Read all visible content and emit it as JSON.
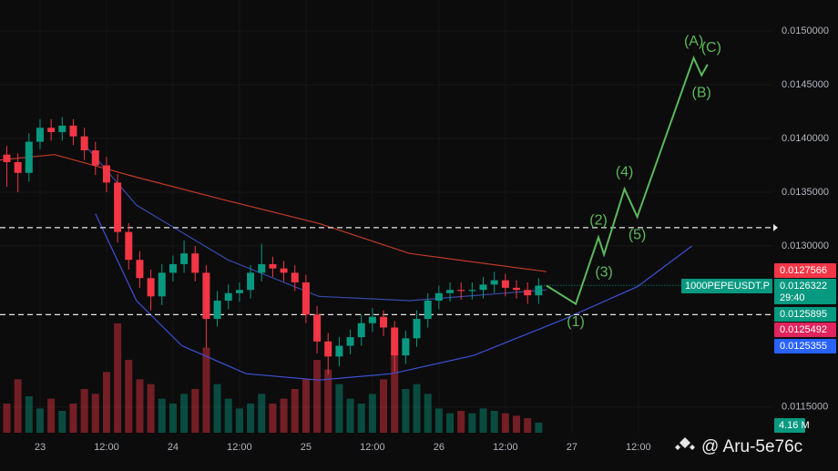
{
  "chart_data": {
    "type": "candlestick",
    "symbol": "1000PEPEUSDT.P",
    "countdown": "29:40",
    "watermark": "@ Aru-5e76c",
    "xlim": [
      -7.23,
      132.2
    ],
    "ylim": [
      0.01126,
      0.01529
    ],
    "y2lim": [
      0,
      60
    ],
    "xticks": [
      {
        "value": 0,
        "label": "23"
      },
      {
        "value": 12,
        "label": "12:00"
      },
      {
        "value": 24,
        "label": "24"
      },
      {
        "value": 36,
        "label": "12:00"
      },
      {
        "value": 48,
        "label": "25"
      },
      {
        "value": 60,
        "label": "12:00"
      },
      {
        "value": 72,
        "label": "26"
      },
      {
        "value": 84,
        "label": "12:00"
      },
      {
        "value": 96,
        "label": "27"
      },
      {
        "value": 108,
        "label": "12:00"
      }
    ],
    "yticks": [
      {
        "value": 0.015,
        "label": "0.0150000"
      },
      {
        "value": 0.0145,
        "label": "0.0145000"
      },
      {
        "value": 0.014,
        "label": "0.0140000"
      },
      {
        "value": 0.0135,
        "label": "0.0135000"
      },
      {
        "value": 0.013,
        "label": "0.0130000"
      },
      {
        "value": 0.0115,
        "label": "0.0115000"
      }
    ],
    "grid": true,
    "up_color": "#089981",
    "down_color": "#f23645",
    "x": [
      -6,
      -4,
      -2,
      0,
      2,
      4,
      6,
      8,
      10,
      12,
      14,
      16,
      18,
      20,
      22,
      24,
      26,
      28,
      30,
      32,
      34,
      36,
      38,
      40,
      42,
      44,
      46,
      48,
      50,
      52,
      54,
      56,
      58,
      60,
      62,
      64,
      66,
      68,
      70,
      72,
      74,
      76,
      78,
      80,
      82,
      84,
      86,
      88,
      90
    ],
    "open": [
      0.01385,
      0.01378,
      0.01368,
      0.01397,
      0.0141,
      0.01406,
      0.01412,
      0.01402,
      0.01389,
      0.01375,
      0.01359,
      0.01313,
      0.01287,
      0.0127,
      0.01253,
      0.01275,
      0.01283,
      0.01293,
      0.01275,
      0.01232,
      0.01249,
      0.01256,
      0.01259,
      0.01275,
      0.01283,
      0.01279,
      0.01275,
      0.01266,
      0.01236,
      0.01211,
      0.01197,
      0.01207,
      0.01215,
      0.01228,
      0.01234,
      0.01224,
      0.01198,
      0.01214,
      0.01232,
      0.01249,
      0.01256,
      0.01259,
      0.01258,
      0.01259,
      0.01264,
      0.01268,
      0.01261,
      0.01259,
      0.01254
    ],
    "high": [
      0.01393,
      0.01386,
      0.01405,
      0.01418,
      0.01418,
      0.0142,
      0.01418,
      0.0141,
      0.01397,
      0.01383,
      0.01367,
      0.01321,
      0.01295,
      0.01278,
      0.01283,
      0.01291,
      0.01305,
      0.013,
      0.01282,
      0.01258,
      0.01264,
      0.01266,
      0.01282,
      0.01302,
      0.0129,
      0.01286,
      0.01282,
      0.01273,
      0.01244,
      0.01219,
      0.01215,
      0.01222,
      0.01236,
      0.01242,
      0.0124,
      0.0123,
      0.01221,
      0.0124,
      0.01256,
      0.01263,
      0.01266,
      0.01266,
      0.01266,
      0.01271,
      0.01276,
      0.01274,
      0.01268,
      0.01266,
      0.0127
    ],
    "low": [
      0.01355,
      0.0135,
      0.0136,
      0.0139,
      0.01398,
      0.01398,
      0.01394,
      0.0138,
      0.01366,
      0.0135,
      0.01303,
      0.01278,
      0.01261,
      0.0124,
      0.01245,
      0.01267,
      0.01275,
      0.01267,
      0.01205,
      0.01225,
      0.01241,
      0.01248,
      0.01251,
      0.01267,
      0.01271,
      0.01267,
      0.01258,
      0.01228,
      0.012,
      0.0118,
      0.01188,
      0.01199,
      0.01207,
      0.0122,
      0.01216,
      0.01183,
      0.0119,
      0.01206,
      0.01224,
      0.01241,
      0.01248,
      0.0125,
      0.0125,
      0.01251,
      0.01256,
      0.01253,
      0.01251,
      0.01246,
      0.01246
    ],
    "close": [
      0.01378,
      0.01368,
      0.01397,
      0.0141,
      0.01406,
      0.01412,
      0.01402,
      0.01389,
      0.01375,
      0.01359,
      0.01313,
      0.01287,
      0.0127,
      0.01253,
      0.01275,
      0.01283,
      0.01293,
      0.01275,
      0.01232,
      0.01249,
      0.01256,
      0.01259,
      0.01275,
      0.01283,
      0.01279,
      0.01275,
      0.01266,
      0.01236,
      0.01211,
      0.01197,
      0.01207,
      0.01215,
      0.01228,
      0.01234,
      0.01224,
      0.01198,
      0.01214,
      0.01232,
      0.01249,
      0.01256,
      0.01259,
      0.01258,
      0.01259,
      0.01264,
      0.01268,
      0.01261,
      0.01259,
      0.01254,
      0.01263
    ],
    "volume": [
      12,
      22,
      15,
      10,
      14,
      9,
      12,
      18,
      16,
      25,
      45,
      30,
      22,
      20,
      14,
      12,
      16,
      18,
      35,
      20,
      14,
      10,
      12,
      16,
      12,
      14,
      18,
      22,
      30,
      26,
      20,
      14,
      12,
      16,
      22,
      34,
      18,
      20,
      16,
      10,
      8,
      9,
      8,
      10,
      9,
      8,
      7,
      6,
      4.16
    ],
    "volume_badge": {
      "value": 4.16,
      "label": "4.16 M"
    },
    "overlays": [
      {
        "color": "#c0392b",
        "x": [
          -7.23,
          2.63,
          17.4,
          33.9,
          50.3,
          66.7,
          91.4
        ],
        "values": [
          0.0138,
          0.01385,
          0.01364,
          0.01342,
          0.01321,
          0.01293,
          0.01276
        ]
      },
      {
        "color": "#3949ab",
        "x": [
          7.56,
          17.4,
          33.9,
          50.3,
          66.7,
          91.4
        ],
        "values": [
          0.01397,
          0.01338,
          0.01287,
          0.01253,
          0.01249,
          0.01259
        ]
      },
      {
        "color": "#3f51d6",
        "x": [
          10.0,
          17.4,
          25.6,
          37.2,
          50.3,
          63.5,
          78.3,
          94.7,
          107.8,
          117.7
        ],
        "values": [
          0.0133,
          0.01249,
          0.01207,
          0.01181,
          0.01175,
          0.01181,
          0.01198,
          0.01232,
          0.01262,
          0.013
        ]
      }
    ],
    "wave": {
      "color": "#5cb85c",
      "x": [
        91.4,
        96.7,
        100.8,
        101.8,
        105.5,
        107.8,
        118.0,
        119.4,
        120.5
      ],
      "values": [
        0.01263,
        0.01246,
        0.01308,
        0.01292,
        0.01353,
        0.01327,
        0.01475,
        0.01459,
        0.01469
      ],
      "labels": [
        "(1)",
        "(2)",
        "(3)",
        "(4)",
        "(5)",
        "(A)",
        "(B)",
        "(C)"
      ]
    },
    "hlines": [
      0.01317,
      0.01236
    ],
    "current_price": 0.0126322,
    "price_badges": [
      {
        "value": 0.0127566,
        "label": "0.0127566",
        "color": "#f23645"
      },
      {
        "value": 0.0126322,
        "label": "0.0126322",
        "color": "#089981"
      },
      {
        "value": 0.0125895,
        "label": "0.0125895",
        "color": "#089981"
      },
      {
        "value": 0.0125492,
        "label": "0.0125492",
        "color": "#e0245e"
      },
      {
        "value": 0.0125355,
        "label": "0.0125355",
        "color": "#2962ff"
      }
    ]
  }
}
